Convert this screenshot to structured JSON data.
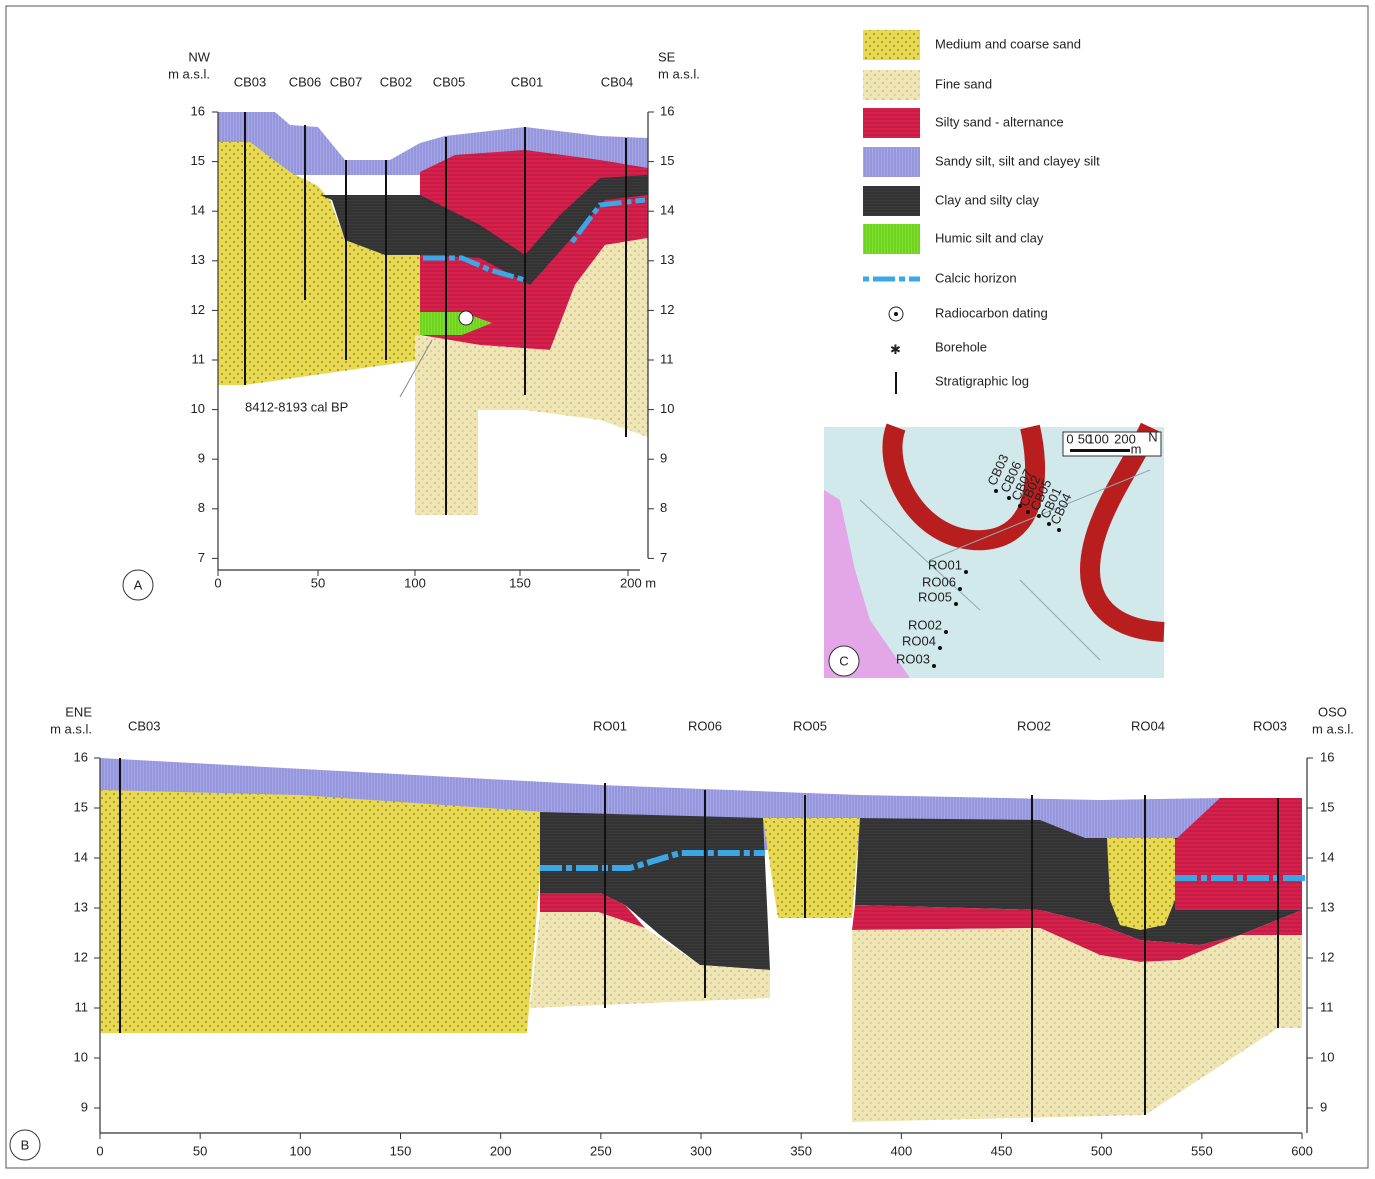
{
  "panel_a": {
    "label": "A",
    "left_axis_title": [
      "NW",
      "m a.s.l."
    ],
    "right_axis_title": [
      "SE",
      "m a.s.l."
    ],
    "y_ticks": [
      "16",
      "15",
      "14",
      "13",
      "12",
      "11",
      "10",
      "9",
      "8",
      "7"
    ],
    "x_ticks": [
      "0",
      "50",
      "100",
      "150",
      "200 m"
    ],
    "boreholes": [
      "CB03",
      "CB06",
      "CB07",
      "CB02",
      "CB05",
      "CB01",
      "CB04"
    ],
    "annotation": "8412-8193 cal BP"
  },
  "panel_b": {
    "label": "B",
    "left_axis_title": [
      "ENE",
      "m a.s.l."
    ],
    "right_axis_title": [
      "OSO",
      "m a.s.l."
    ],
    "y_ticks": [
      "16",
      "15",
      "14",
      "13",
      "12",
      "11",
      "10",
      "9"
    ],
    "x_ticks": [
      "0",
      "50",
      "100",
      "150",
      "200",
      "250",
      "300",
      "350",
      "400",
      "450",
      "500",
      "550",
      "600"
    ],
    "boreholes": [
      "CB03",
      "RO01",
      "RO06",
      "RO05",
      "RO02",
      "RO04",
      "RO03"
    ]
  },
  "legend": [
    "Medium and coarse sand",
    "Fine sand",
    "Silty sand - alternance",
    "Sandy silt, silt and clayey silt",
    "Clay and silty clay",
    "Humic silt and clay",
    "Calcic horizon",
    "Radiocarbon dating",
    "Borehole",
    "Stratigraphic log"
  ],
  "map": {
    "label": "C",
    "boreholes": [
      "CB03",
      "CB06",
      "CB07",
      "CB02",
      "CB05",
      "CB01",
      "CB04",
      "RO01",
      "RO06",
      "RO05",
      "RO02",
      "RO04",
      "RO03"
    ],
    "scale": [
      "0",
      "50",
      "100",
      "200",
      "m"
    ],
    "north": "N"
  }
}
